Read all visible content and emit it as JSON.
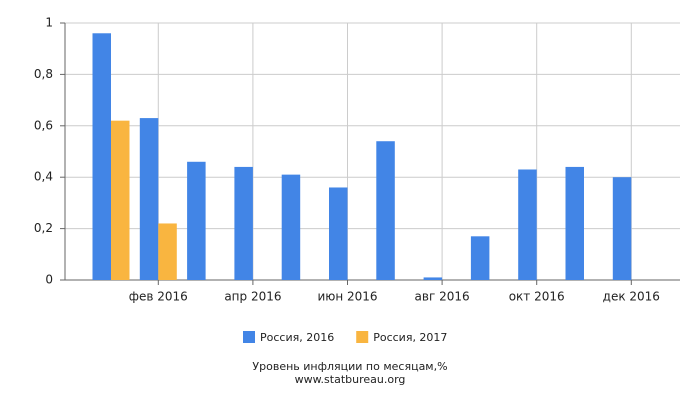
{
  "chart_data": {
    "type": "bar",
    "title": "Уровень инфляции по месяцам,%",
    "source": "www.statbureau.org",
    "categories": [
      null,
      "фев 2016",
      null,
      "апр 2016",
      null,
      "июн 2016",
      null,
      "авг 2016",
      null,
      "окт 2016",
      null,
      "дек 2016"
    ],
    "series": [
      {
        "name": "Россия, 2016",
        "color": "#4285e6",
        "values": [
          0.96,
          0.63,
          0.46,
          0.44,
          0.41,
          0.36,
          0.54,
          0.01,
          0.17,
          0.43,
          0.44,
          0.4
        ]
      },
      {
        "name": "Россия, 2017",
        "color": "#f9b540",
        "values": [
          0.62,
          0.22,
          null,
          null,
          null,
          null,
          null,
          null,
          null,
          null,
          null,
          null
        ]
      }
    ],
    "ylim": [
      0,
      1
    ],
    "yticks": [
      0,
      {
        "value": 0.2,
        "label": "0,2"
      },
      {
        "value": 0.4,
        "label": "0,4"
      },
      {
        "value": 0.6,
        "label": "0,6"
      },
      {
        "value": 0.8,
        "label": "0,8"
      },
      1
    ],
    "grid": true
  }
}
